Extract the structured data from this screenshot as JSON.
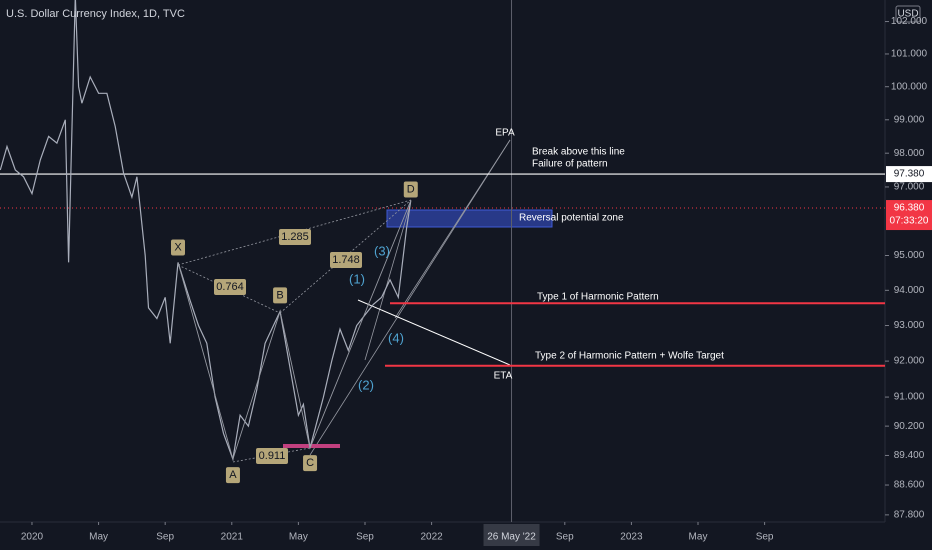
{
  "chart_data": {
    "type": "line",
    "title": "U.S. Dollar Currency Index, 1D, TVC",
    "currency": "USD",
    "log_scale": true,
    "grid": false,
    "series": [
      {
        "color": "#a9aebb",
        "x": [
          -1.9,
          -1.5,
          -1,
          -0.5,
          0,
          0.5,
          1,
          1.5,
          2,
          2.2,
          2.6,
          2.8,
          3,
          3.5,
          4,
          4.5,
          5,
          5.5,
          6,
          6.3,
          6.8,
          7,
          7.5,
          8,
          8.3,
          8.77,
          9.5,
          10,
          10.5,
          11,
          11.5,
          12.07,
          12.5,
          13,
          13.5,
          14,
          14.9,
          15.5,
          16,
          16.3,
          16.7,
          17.5,
          18,
          18.5,
          19,
          19.5,
          20,
          20.5,
          21,
          21.5,
          22,
          22.3,
          22.5,
          22.75
        ],
        "values": [
          97.5,
          98.2,
          97.5,
          97.3,
          96.8,
          97.8,
          98.5,
          98.3,
          99.0,
          94.8,
          102.8,
          100.0,
          99.5,
          100.3,
          99.8,
          99.8,
          98.8,
          97.4,
          96.7,
          97.3,
          95.0,
          93.5,
          93.2,
          93.8,
          92.5,
          94.8,
          93.7,
          93.0,
          92.5,
          91.0,
          90.0,
          89.3,
          90.5,
          90.2,
          91.2,
          92.5,
          93.4,
          91.8,
          90.5,
          90.8,
          89.6,
          91.0,
          92.0,
          92.9,
          92.3,
          93.0,
          93.3,
          93.6,
          93.8,
          94.3,
          93.8,
          95.0,
          95.8,
          96.6
        ]
      }
    ],
    "ylim": [
      87.61,
      102.67
    ],
    "yticks": [
      {
        "value": 102,
        "label": "102.000"
      },
      {
        "value": 101,
        "label": "101.000"
      },
      {
        "value": 100,
        "label": "100.000"
      },
      {
        "value": 99,
        "label": "99.000"
      },
      {
        "value": 98,
        "label": "98.000"
      },
      {
        "value": 97,
        "label": "97.000"
      },
      {
        "value": 95,
        "label": "95.000"
      },
      {
        "value": 94,
        "label": "94.000"
      },
      {
        "value": 93,
        "label": "93.000"
      },
      {
        "value": 92,
        "label": "92.000"
      },
      {
        "value": 91,
        "label": "91.000"
      },
      {
        "value": 90.2,
        "label": "90.200"
      },
      {
        "value": 89.4,
        "label": "89.400"
      },
      {
        "value": 88.6,
        "label": "88.600"
      },
      {
        "value": 87.8,
        "label": "87.800"
      }
    ],
    "xlim": [
      -1.92,
      51.23
    ],
    "xticks": [
      {
        "value": 0,
        "label": "2020"
      },
      {
        "value": 4,
        "label": "May"
      },
      {
        "value": 8,
        "label": "Sep"
      },
      {
        "value": 12,
        "label": "2021"
      },
      {
        "value": 16,
        "label": "May"
      },
      {
        "value": 20,
        "label": "Sep"
      },
      {
        "value": 24,
        "label": "2022"
      },
      {
        "value": 32,
        "label": "Sep"
      },
      {
        "value": 36,
        "label": "2023"
      },
      {
        "value": 40,
        "label": "May"
      },
      {
        "value": 44,
        "label": "Sep"
      }
    ],
    "horizontal_lines": [
      {
        "value": 97.38,
        "label": "97.380",
        "color": "#ffffff"
      },
      {
        "value": 93.63,
        "color": "#f23645"
      },
      {
        "value": 91.87,
        "color": "#f23645"
      }
    ],
    "last_price": {
      "value": 96.38,
      "label": "96.380",
      "countdown": "07:33:20"
    },
    "crosshair": {
      "x": 28.8,
      "label": "26 May '22"
    },
    "pattern_points": [
      {
        "label": "X",
        "x": 8.77,
        "value": 94.8
      },
      {
        "label": "A",
        "x": 12.07,
        "value": 89.3
      },
      {
        "label": "B",
        "x": 14.9,
        "value": 93.4
      },
      {
        "label": "C",
        "x": 16.7,
        "value": 89.6
      },
      {
        "label": "D",
        "x": 22.75,
        "value": 96.6
      }
    ],
    "ratios": [
      "1.285",
      "0.764",
      "1.748",
      "0.911"
    ],
    "waves": [
      "(1)",
      "(2)",
      "(3)",
      "(4)"
    ],
    "annotations": {
      "epa": "EPA",
      "eta": "ETA",
      "break": "Break above this line",
      "failure": "Failure of pattern",
      "zone": "Reversal potential zone",
      "type1": "Type 1 of Harmonic Pattern",
      "type2": "Type 2 of Harmonic Pattern + Wolfe Target"
    }
  }
}
